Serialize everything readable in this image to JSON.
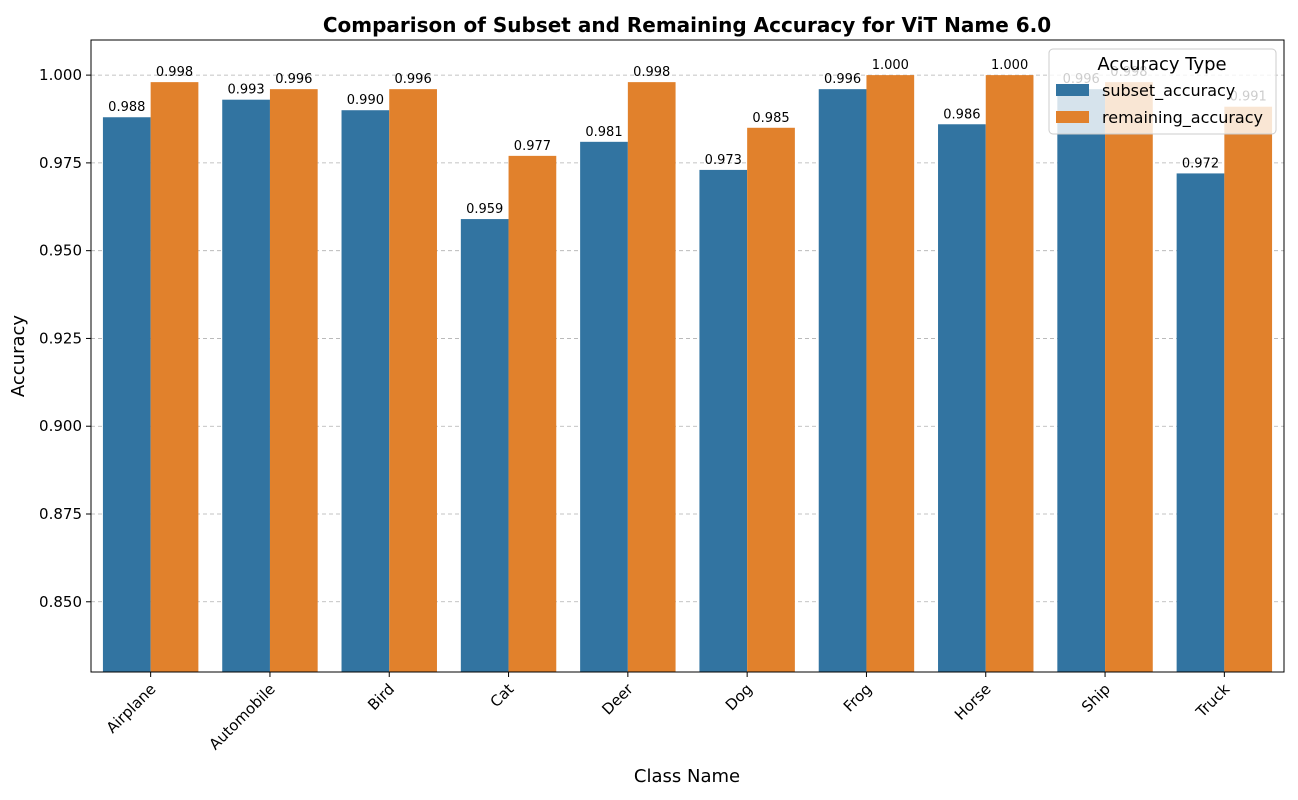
{
  "chart_data": {
    "type": "bar",
    "title": "Comparison of Subset and Remaining Accuracy for ViT Name 6.0",
    "xlabel": "Class Name",
    "ylabel": "Accuracy",
    "ylim": [
      0.83,
      1.01
    ],
    "yticks": [
      "0.850",
      "0.875",
      "0.900",
      "0.925",
      "0.950",
      "0.975",
      "1.000"
    ],
    "grid": "y-dashed",
    "categories": [
      "Airplane",
      "Automobile",
      "Bird",
      "Cat",
      "Deer",
      "Dog",
      "Frog",
      "Horse",
      "Ship",
      "Truck"
    ],
    "legend": {
      "title": "Accuracy Type",
      "placement": "top-right"
    },
    "series": [
      {
        "name": "subset_accuracy",
        "color": "#3274a1",
        "values": [
          0.988,
          0.993,
          0.99,
          0.959,
          0.981,
          0.973,
          0.996,
          0.986,
          0.996,
          0.972
        ],
        "labels": [
          "0.988",
          "0.993",
          "0.990",
          "0.959",
          "0.981",
          "0.973",
          "0.996",
          "0.986",
          "0.996",
          "0.972"
        ]
      },
      {
        "name": "remaining_accuracy",
        "color": "#e1812c",
        "values": [
          0.998,
          0.996,
          0.996,
          0.977,
          0.998,
          0.985,
          1.0,
          1.0,
          0.998,
          0.991
        ],
        "labels": [
          "0.998",
          "0.996",
          "0.996",
          "0.977",
          "0.998",
          "0.985",
          "1.000",
          "1.000",
          "0.998",
          "0.991"
        ]
      }
    ]
  }
}
